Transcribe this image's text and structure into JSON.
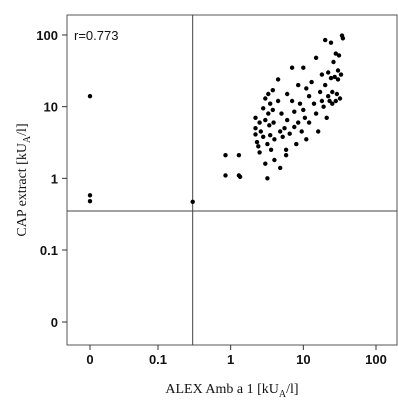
{
  "chart_data": {
    "type": "scatter",
    "xlabel": {
      "main": "ALEX Amb a 1 [kU",
      "sub": "A",
      "tail": "/l]"
    },
    "ylabel": {
      "main": "CAP extract [kU",
      "sub": "A",
      "tail": "/l]"
    },
    "x_scale": "log (zero shown at left)",
    "y_scale": "log (zero shown at bottom)",
    "x_ticks": [
      "0",
      "0.1",
      "1",
      "10",
      "100"
    ],
    "y_ticks": [
      "100",
      "10",
      "1",
      "0.1",
      "0"
    ],
    "x_cutoff": 0.3,
    "y_cutoff": 0.35,
    "annotation": "r=0.773",
    "grid": false,
    "points": [
      {
        "x": 0,
        "y": 14
      },
      {
        "x": 0,
        "y": 0.58
      },
      {
        "x": 0,
        "y": 0.48
      },
      {
        "x": 0.3,
        "y": 0.47
      },
      {
        "x": 0.85,
        "y": 2.1
      },
      {
        "x": 0.85,
        "y": 1.1
      },
      {
        "x": 1.3,
        "y": 2.1
      },
      {
        "x": 1.3,
        "y": 1.1
      },
      {
        "x": 1.35,
        "y": 1.05
      },
      {
        "x": 2.2,
        "y": 7
      },
      {
        "x": 2.2,
        "y": 5
      },
      {
        "x": 2.2,
        "y": 4.1
      },
      {
        "x": 2.3,
        "y": 3.2
      },
      {
        "x": 2.4,
        "y": 2.8
      },
      {
        "x": 2.5,
        "y": 6
      },
      {
        "x": 2.5,
        "y": 2.3
      },
      {
        "x": 2.6,
        "y": 4.5
      },
      {
        "x": 2.8,
        "y": 9.5
      },
      {
        "x": 2.8,
        "y": 3.8
      },
      {
        "x": 3.0,
        "y": 13
      },
      {
        "x": 3.0,
        "y": 6.5
      },
      {
        "x": 3.0,
        "y": 1.6
      },
      {
        "x": 3.2,
        "y": 3
      },
      {
        "x": 3.2,
        "y": 1
      },
      {
        "x": 3.3,
        "y": 15
      },
      {
        "x": 3.3,
        "y": 8
      },
      {
        "x": 3.4,
        "y": 5.5
      },
      {
        "x": 3.5,
        "y": 11
      },
      {
        "x": 3.5,
        "y": 4
      },
      {
        "x": 3.6,
        "y": 2.5
      },
      {
        "x": 3.8,
        "y": 17
      },
      {
        "x": 3.8,
        "y": 9
      },
      {
        "x": 3.9,
        "y": 6
      },
      {
        "x": 4.0,
        "y": 3.5
      },
      {
        "x": 4.0,
        "y": 1.8
      },
      {
        "x": 4.5,
        "y": 24
      },
      {
        "x": 4.5,
        "y": 12
      },
      {
        "x": 4.8,
        "y": 4.5
      },
      {
        "x": 4.8,
        "y": 1.4
      },
      {
        "x": 5.0,
        "y": 8
      },
      {
        "x": 5.2,
        "y": 3.8
      },
      {
        "x": 5.5,
        "y": 5
      },
      {
        "x": 5.8,
        "y": 2.5
      },
      {
        "x": 5.8,
        "y": 2.1
      },
      {
        "x": 6.0,
        "y": 15
      },
      {
        "x": 6.0,
        "y": 6.5
      },
      {
        "x": 6.5,
        "y": 4.2
      },
      {
        "x": 7.0,
        "y": 35
      },
      {
        "x": 7.0,
        "y": 12
      },
      {
        "x": 7.5,
        "y": 8.5
      },
      {
        "x": 7.5,
        "y": 5.2
      },
      {
        "x": 8.0,
        "y": 3
      },
      {
        "x": 8.5,
        "y": 20
      },
      {
        "x": 8.5,
        "y": 6
      },
      {
        "x": 9.0,
        "y": 11
      },
      {
        "x": 9.5,
        "y": 4.5
      },
      {
        "x": 10,
        "y": 35
      },
      {
        "x": 10,
        "y": 9
      },
      {
        "x": 10.5,
        "y": 7
      },
      {
        "x": 11,
        "y": 18
      },
      {
        "x": 11,
        "y": 3.5
      },
      {
        "x": 12,
        "y": 14
      },
      {
        "x": 12,
        "y": 6
      },
      {
        "x": 13,
        "y": 22
      },
      {
        "x": 14,
        "y": 11
      },
      {
        "x": 15,
        "y": 48
      },
      {
        "x": 15,
        "y": 8
      },
      {
        "x": 16,
        "y": 4.5
      },
      {
        "x": 17,
        "y": 16
      },
      {
        "x": 18,
        "y": 28
      },
      {
        "x": 18,
        "y": 12
      },
      {
        "x": 19,
        "y": 10
      },
      {
        "x": 20,
        "y": 85
      },
      {
        "x": 20,
        "y": 20
      },
      {
        "x": 21,
        "y": 7
      },
      {
        "x": 22,
        "y": 14
      },
      {
        "x": 22,
        "y": 30
      },
      {
        "x": 23,
        "y": 12
      },
      {
        "x": 24,
        "y": 78
      },
      {
        "x": 24,
        "y": 25
      },
      {
        "x": 25,
        "y": 16
      },
      {
        "x": 25,
        "y": 11
      },
      {
        "x": 26,
        "y": 42
      },
      {
        "x": 27,
        "y": 26
      },
      {
        "x": 28,
        "y": 12
      },
      {
        "x": 28,
        "y": 55
      },
      {
        "x": 29,
        "y": 15
      },
      {
        "x": 30,
        "y": 32
      },
      {
        "x": 30,
        "y": 24
      },
      {
        "x": 32,
        "y": 13
      },
      {
        "x": 34,
        "y": 98
      },
      {
        "x": 35,
        "y": 90
      },
      {
        "x": 33,
        "y": 28
      },
      {
        "x": 31,
        "y": 52
      }
    ]
  }
}
